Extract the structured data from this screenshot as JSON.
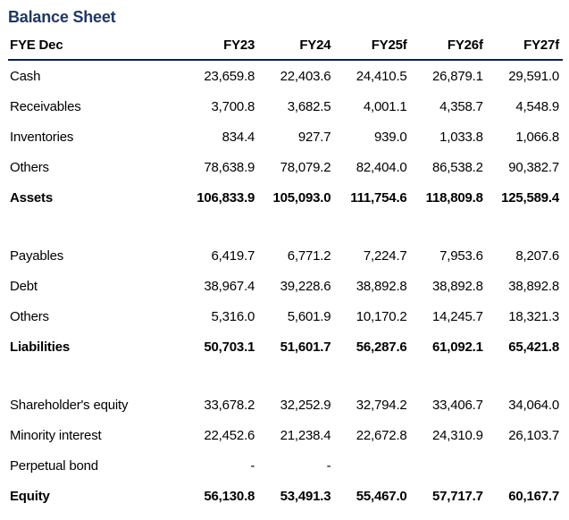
{
  "title": "Balance Sheet",
  "colors": {
    "title_accent": "#1F3864",
    "header_rule": "#002060",
    "text": "#000000",
    "background": "#FFFFFF"
  },
  "table": {
    "header": [
      "FYE Dec",
      "FY23",
      "FY24",
      "FY25f",
      "FY26f",
      "FY27f"
    ],
    "rows": [
      {
        "label": "Cash",
        "bold": false,
        "spacer": false,
        "values": [
          "23,659.8",
          "22,403.6",
          "24,410.5",
          "26,879.1",
          "29,591.0"
        ]
      },
      {
        "label": "Receivables",
        "bold": false,
        "spacer": false,
        "values": [
          "3,700.8",
          "3,682.5",
          "4,001.1",
          "4,358.7",
          "4,548.9"
        ]
      },
      {
        "label": "Inventories",
        "bold": false,
        "spacer": false,
        "values": [
          "834.4",
          "927.7",
          "939.0",
          "1,033.8",
          "1,066.8"
        ]
      },
      {
        "label": "Others",
        "bold": false,
        "spacer": false,
        "values": [
          "78,638.9",
          "78,079.2",
          "82,404.0",
          "86,538.2",
          "90,382.7"
        ]
      },
      {
        "label": "Assets",
        "bold": true,
        "spacer": false,
        "values": [
          "106,833.9",
          "105,093.0",
          "111,754.6",
          "118,809.8",
          "125,589.4"
        ]
      },
      {
        "label": "",
        "bold": false,
        "spacer": true,
        "values": [
          "",
          "",
          "",
          "",
          ""
        ]
      },
      {
        "label": "Payables",
        "bold": false,
        "spacer": false,
        "values": [
          "6,419.7",
          "6,771.2",
          "7,224.7",
          "7,953.6",
          "8,207.6"
        ]
      },
      {
        "label": "Debt",
        "bold": false,
        "spacer": false,
        "values": [
          "38,967.4",
          "39,228.6",
          "38,892.8",
          "38,892.8",
          "38,892.8"
        ]
      },
      {
        "label": "Others",
        "bold": false,
        "spacer": false,
        "values": [
          "5,316.0",
          "5,601.9",
          "10,170.2",
          "14,245.7",
          "18,321.3"
        ]
      },
      {
        "label": "Liabilities",
        "bold": true,
        "spacer": false,
        "values": [
          "50,703.1",
          "51,601.7",
          "56,287.6",
          "61,092.1",
          "65,421.8"
        ]
      },
      {
        "label": "",
        "bold": false,
        "spacer": true,
        "values": [
          "",
          "",
          "",
          "",
          ""
        ]
      },
      {
        "label": "Shareholder's equity",
        "bold": false,
        "spacer": false,
        "values": [
          "33,678.2",
          "32,252.9",
          "32,794.2",
          "33,406.7",
          "34,064.0"
        ]
      },
      {
        "label": "Minority interest",
        "bold": false,
        "spacer": false,
        "values": [
          "22,452.6",
          "21,238.4",
          "22,672.8",
          "24,310.9",
          "26,103.7"
        ]
      },
      {
        "label": "Perpetual bond",
        "bold": false,
        "spacer": false,
        "values": [
          "-",
          "-",
          "",
          "",
          ""
        ]
      },
      {
        "label": "Equity",
        "bold": true,
        "spacer": false,
        "values": [
          "56,130.8",
          "53,491.3",
          "55,467.0",
          "57,717.7",
          "60,167.7"
        ]
      }
    ]
  }
}
